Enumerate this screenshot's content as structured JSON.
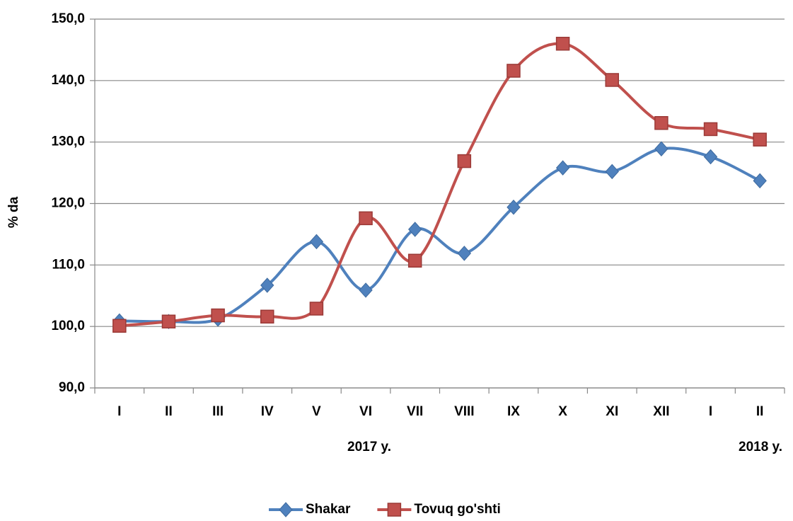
{
  "chart_data": {
    "type": "line",
    "y_axis_label": "% da",
    "categories": [
      "I",
      "II",
      "III",
      "IV",
      "V",
      "VI",
      "VII",
      "VIII",
      "IX",
      "X",
      "XI",
      "XII",
      "I",
      "II"
    ],
    "annotations": [
      "2017 y.",
      "2018 y."
    ],
    "series": [
      {
        "name": "Shakar",
        "color": "#4f81bd",
        "marker": "diamond",
        "values": [
          100.9,
          100.8,
          101.2,
          106.7,
          113.8,
          105.9,
          115.8,
          111.9,
          119.4,
          125.8,
          125.2,
          128.9,
          127.6,
          123.7
        ]
      },
      {
        "name": "Tovuq go'shti",
        "color": "#c0504d",
        "marker": "square",
        "values": [
          100.1,
          100.8,
          101.8,
          101.6,
          102.9,
          117.6,
          110.7,
          126.9,
          141.6,
          146.0,
          140.1,
          133.1,
          132.1,
          130.4
        ]
      }
    ],
    "ylim": [
      90,
      150
    ],
    "yticks": [
      {
        "value": 90,
        "label": "90,0"
      },
      {
        "value": 100,
        "label": "100,0"
      },
      {
        "value": 110,
        "label": "110,0"
      },
      {
        "value": 120,
        "label": "120,0"
      },
      {
        "value": 130,
        "label": "130,0"
      },
      {
        "value": 140,
        "label": "140,0"
      },
      {
        "value": 150,
        "label": "150,0"
      }
    ],
    "grid": true,
    "smooth": true,
    "legend": "bottom"
  }
}
